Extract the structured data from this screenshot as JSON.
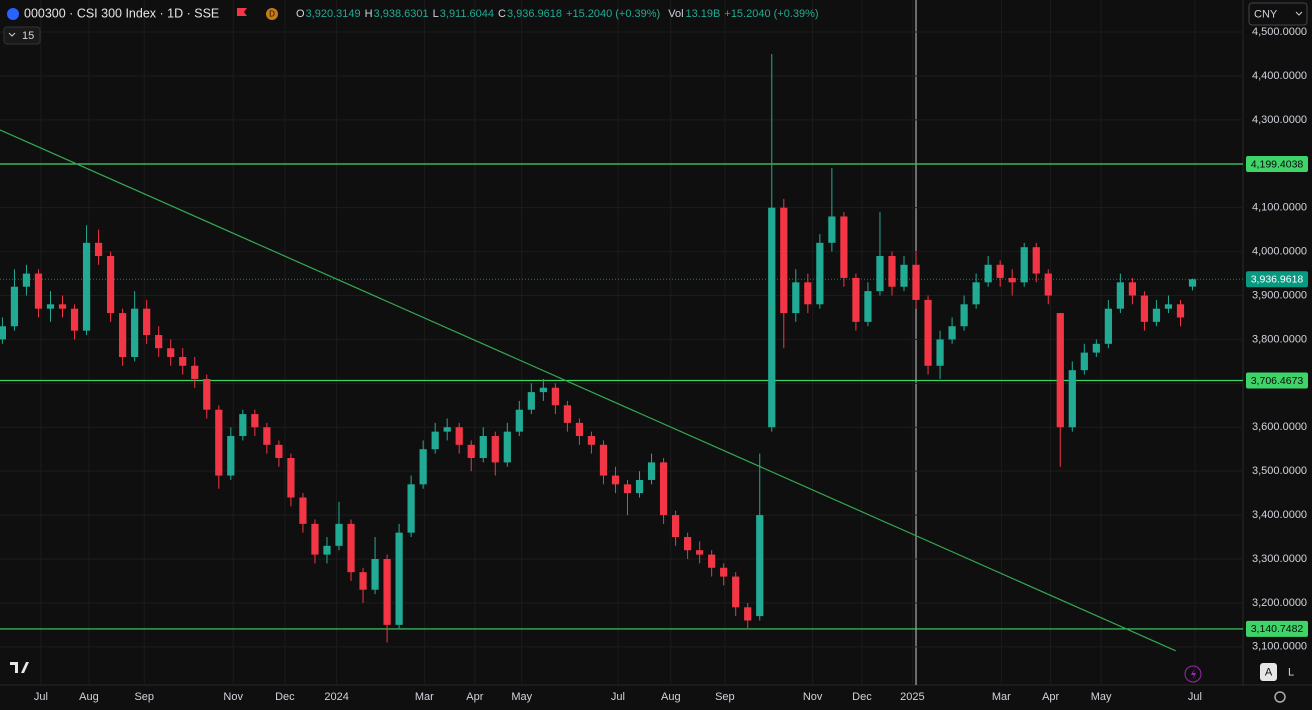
{
  "header": {
    "symbol": "000300 · CSI 300 Index · 1D · SSE",
    "badge": "D",
    "interval": "15",
    "currency": "CNY",
    "legend": [
      {
        "key": "O",
        "value": "3,920.3149"
      },
      {
        "key": "H",
        "value": "3,938.6301"
      },
      {
        "key": "L",
        "value": "3,911.6044"
      },
      {
        "key": "C",
        "value": "3,936.9618"
      }
    ],
    "change": "+15.2040 (+0.39%)",
    "vol_key": "Vol",
    "vol_value": "13.19B",
    "vol_change": "+15.2040 (+0.39%)"
  },
  "footer": {
    "auto": "A",
    "log": "L"
  },
  "chart_data": {
    "type": "candlestick",
    "colors": {
      "up": "#22ab94",
      "down": "#f23645",
      "level": "#3fd468",
      "trend": "#34a853"
    },
    "ylim": [
      3070,
      4516
    ],
    "xlim": [
      -0.2,
      103.2
    ],
    "yticks": [
      {
        "value": 3100,
        "label": "3,100.0000"
      },
      {
        "value": 3200,
        "label": "3,200.0000"
      },
      {
        "value": 3300,
        "label": "3,300.0000"
      },
      {
        "value": 3400,
        "label": "3,400.0000"
      },
      {
        "value": 3500,
        "label": "3,500.0000"
      },
      {
        "value": 3600,
        "label": "3,600.0000"
      },
      {
        "value": 3700,
        "label": "3,700.0000"
      },
      {
        "value": 3800,
        "label": "3,800.0000"
      },
      {
        "value": 3900,
        "label": "3,900.0000"
      },
      {
        "value": 4000,
        "label": "4,000.0000"
      },
      {
        "value": 4100,
        "label": "4,100.0000"
      },
      {
        "value": 4200,
        "label": "4,200.0000"
      },
      {
        "value": 4300,
        "label": "4,300.0000"
      },
      {
        "value": 4400,
        "label": "4,400.0000"
      },
      {
        "value": 4500,
        "label": "4,500.0000"
      }
    ],
    "xticks": [
      {
        "value": 3.2,
        "label": "Jul"
      },
      {
        "value": 7.2,
        "label": "Aug"
      },
      {
        "value": 11.8,
        "label": "Sep"
      },
      {
        "value": 19.2,
        "label": "Nov"
      },
      {
        "value": 23.5,
        "label": "Dec"
      },
      {
        "value": 27.8,
        "label": "2024"
      },
      {
        "value": 35.1,
        "label": "Mar"
      },
      {
        "value": 39.3,
        "label": "Apr"
      },
      {
        "value": 43.2,
        "label": "May"
      },
      {
        "value": 51.2,
        "label": "Jul"
      },
      {
        "value": 55.6,
        "label": "Aug"
      },
      {
        "value": 60.1,
        "label": "Sep"
      },
      {
        "value": 67.4,
        "label": "Nov"
      },
      {
        "value": 71.5,
        "label": "Dec"
      },
      {
        "value": 75.7,
        "label": "2025"
      },
      {
        "value": 83.1,
        "label": "Mar"
      },
      {
        "value": 87.2,
        "label": "Apr"
      },
      {
        "value": 91.4,
        "label": "May"
      },
      {
        "value": 99.2,
        "label": "Jul"
      }
    ],
    "levels": [
      {
        "value": 4199.4038,
        "label": "4,199.4038"
      },
      {
        "value": 3706.4673,
        "label": "3,706.4673"
      },
      {
        "value": 3140.7482,
        "label": "3,140.7482"
      }
    ],
    "last_price": {
      "value": 3936.9618,
      "label": "3,936.9618"
    },
    "trendline": {
      "x": [
        -0.2,
        97.6
      ],
      "y": [
        4277,
        3091
      ]
    },
    "ohlc": [
      [
        3800,
        3850,
        3790,
        3830
      ],
      [
        3830,
        3960,
        3820,
        3920
      ],
      [
        3920,
        3970,
        3900,
        3950
      ],
      [
        3950,
        3960,
        3850,
        3870
      ],
      [
        3870,
        3910,
        3840,
        3880
      ],
      [
        3880,
        3900,
        3850,
        3870
      ],
      [
        3870,
        3880,
        3800,
        3820
      ],
      [
        3820,
        4060,
        3810,
        4020
      ],
      [
        4020,
        4050,
        3970,
        3990
      ],
      [
        3990,
        4000,
        3840,
        3860
      ],
      [
        3860,
        3870,
        3740,
        3760
      ],
      [
        3760,
        3910,
        3750,
        3870
      ],
      [
        3870,
        3890,
        3790,
        3810
      ],
      [
        3810,
        3830,
        3760,
        3780
      ],
      [
        3780,
        3800,
        3740,
        3760
      ],
      [
        3760,
        3780,
        3720,
        3740
      ],
      [
        3740,
        3760,
        3690,
        3710
      ],
      [
        3710,
        3720,
        3620,
        3640
      ],
      [
        3640,
        3650,
        3460,
        3490
      ],
      [
        3490,
        3600,
        3480,
        3580
      ],
      [
        3580,
        3640,
        3570,
        3630
      ],
      [
        3630,
        3640,
        3580,
        3600
      ],
      [
        3600,
        3610,
        3540,
        3560
      ],
      [
        3560,
        3570,
        3510,
        3530
      ],
      [
        3530,
        3540,
        3420,
        3440
      ],
      [
        3440,
        3450,
        3360,
        3380
      ],
      [
        3380,
        3390,
        3290,
        3310
      ],
      [
        3310,
        3350,
        3290,
        3330
      ],
      [
        3330,
        3430,
        3320,
        3380
      ],
      [
        3380,
        3390,
        3250,
        3270
      ],
      [
        3270,
        3280,
        3200,
        3230
      ],
      [
        3230,
        3350,
        3220,
        3300
      ],
      [
        3300,
        3310,
        3110,
        3150
      ],
      [
        3150,
        3380,
        3140,
        3360
      ],
      [
        3360,
        3490,
        3350,
        3470
      ],
      [
        3470,
        3570,
        3460,
        3550
      ],
      [
        3550,
        3610,
        3540,
        3590
      ],
      [
        3590,
        3620,
        3570,
        3600
      ],
      [
        3600,
        3610,
        3540,
        3560
      ],
      [
        3560,
        3570,
        3500,
        3530
      ],
      [
        3530,
        3600,
        3520,
        3580
      ],
      [
        3580,
        3590,
        3490,
        3520
      ],
      [
        3520,
        3610,
        3510,
        3590
      ],
      [
        3590,
        3660,
        3580,
        3640
      ],
      [
        3640,
        3700,
        3630,
        3680
      ],
      [
        3680,
        3710,
        3660,
        3690
      ],
      [
        3690,
        3700,
        3630,
        3650
      ],
      [
        3650,
        3660,
        3590,
        3610
      ],
      [
        3610,
        3620,
        3560,
        3580
      ],
      [
        3580,
        3590,
        3540,
        3560
      ],
      [
        3560,
        3570,
        3470,
        3490
      ],
      [
        3490,
        3510,
        3450,
        3470
      ],
      [
        3470,
        3480,
        3400,
        3450
      ],
      [
        3450,
        3500,
        3440,
        3480
      ],
      [
        3480,
        3540,
        3470,
        3520
      ],
      [
        3520,
        3530,
        3380,
        3400
      ],
      [
        3400,
        3410,
        3330,
        3350
      ],
      [
        3350,
        3360,
        3300,
        3320
      ],
      [
        3320,
        3340,
        3290,
        3310
      ],
      [
        3310,
        3320,
        3260,
        3280
      ],
      [
        3280,
        3290,
        3240,
        3260
      ],
      [
        3260,
        3270,
        3170,
        3190
      ],
      [
        3190,
        3200,
        3140,
        3160
      ],
      [
        3170,
        3540,
        3160,
        3400
      ],
      [
        3600,
        4450,
        3590,
        4100
      ],
      [
        4100,
        4120,
        3780,
        3860
      ],
      [
        3860,
        3960,
        3840,
        3930
      ],
      [
        3930,
        3950,
        3860,
        3880
      ],
      [
        3880,
        4040,
        3870,
        4020
      ],
      [
        4020,
        4190,
        4000,
        4080
      ],
      [
        4080,
        4090,
        3920,
        3940
      ],
      [
        3940,
        3950,
        3820,
        3840
      ],
      [
        3840,
        3930,
        3830,
        3910
      ],
      [
        3910,
        4090,
        3900,
        3990
      ],
      [
        3990,
        4000,
        3900,
        3920
      ],
      [
        3920,
        3990,
        3910,
        3970
      ],
      [
        3970,
        4000,
        3870,
        3890
      ],
      [
        3890,
        3900,
        3720,
        3740
      ],
      [
        3740,
        3820,
        3710,
        3800
      ],
      [
        3800,
        3850,
        3790,
        3830
      ],
      [
        3830,
        3900,
        3820,
        3880
      ],
      [
        3880,
        3950,
        3870,
        3930
      ],
      [
        3930,
        3990,
        3920,
        3970
      ],
      [
        3970,
        3980,
        3920,
        3940
      ],
      [
        3940,
        3960,
        3900,
        3930
      ],
      [
        3930,
        4020,
        3920,
        4010
      ],
      [
        4010,
        4020,
        3930,
        3950
      ],
      [
        3950,
        3960,
        3880,
        3900
      ],
      [
        3860,
        3860,
        3510,
        3600
      ],
      [
        3600,
        3750,
        3590,
        3730
      ],
      [
        3730,
        3790,
        3720,
        3770
      ],
      [
        3770,
        3800,
        3760,
        3790
      ],
      [
        3790,
        3890,
        3780,
        3870
      ],
      [
        3870,
        3950,
        3860,
        3930
      ],
      [
        3930,
        3940,
        3880,
        3900
      ],
      [
        3900,
        3910,
        3820,
        3840
      ],
      [
        3840,
        3890,
        3830,
        3870
      ],
      [
        3870,
        3900,
        3860,
        3880
      ],
      [
        3880,
        3890,
        3830,
        3850
      ],
      [
        3920.3149,
        3938.6301,
        3911.6044,
        3936.9618
      ]
    ]
  }
}
